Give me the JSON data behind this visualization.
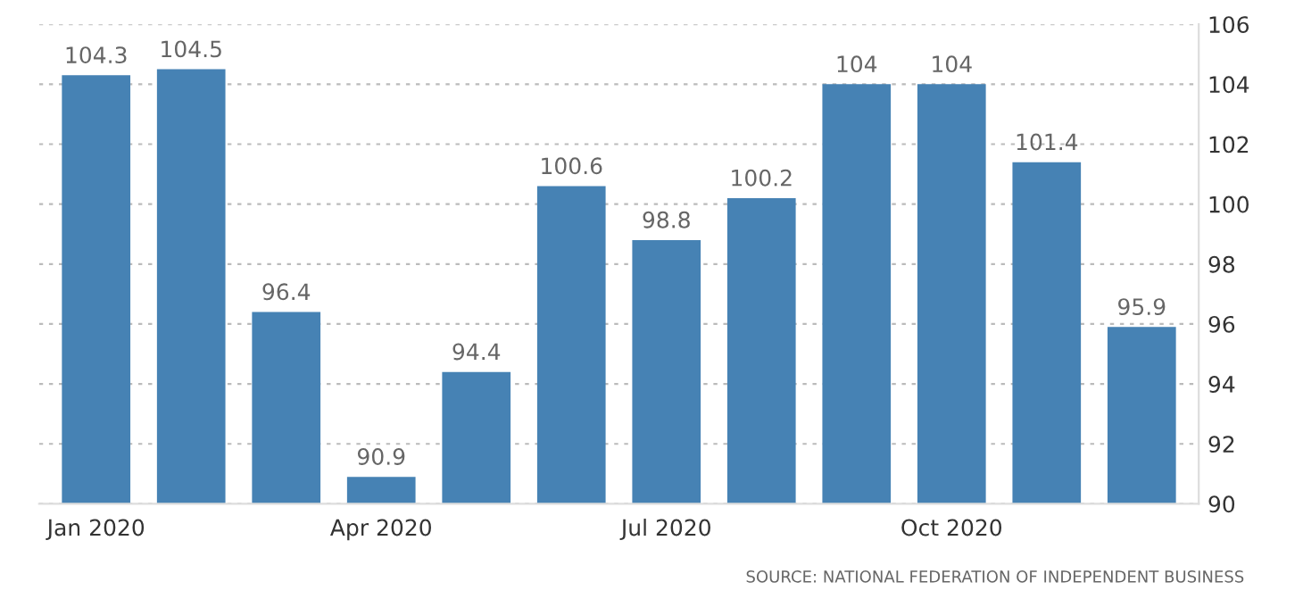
{
  "chart_data": {
    "type": "bar",
    "categories": [
      "Jan 2020",
      null,
      null,
      "Apr 2020",
      null,
      null,
      "Jul 2020",
      null,
      null,
      "Oct 2020",
      null,
      null
    ],
    "values": [
      104.3,
      104.5,
      96.4,
      90.9,
      94.4,
      100.6,
      98.8,
      100.2,
      104,
      104,
      101.4,
      95.9
    ],
    "color": "#4682b4",
    "ylim": [
      90,
      106
    ],
    "yticks": [
      90,
      92,
      94,
      96,
      98,
      100,
      102,
      104,
      106
    ],
    "grid": "y",
    "data_labels": true,
    "annotations": [
      "SOURCE: NATIONAL FEDERATION OF INDEPENDENT BUSINESS"
    ]
  }
}
